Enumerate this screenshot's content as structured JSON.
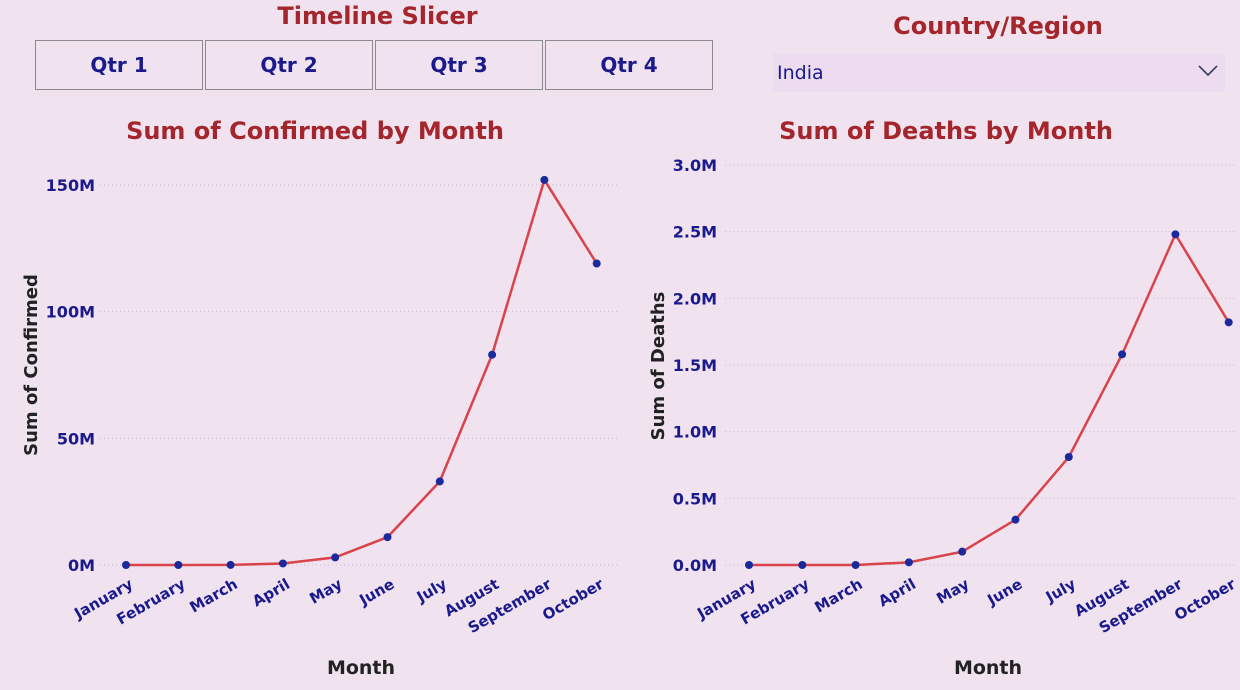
{
  "slicer": {
    "title": "Timeline Slicer",
    "buttons": [
      "Qtr 1",
      "Qtr 2",
      "Qtr 3",
      "Qtr 4"
    ]
  },
  "filter": {
    "title": "Country/Region",
    "selected": "India",
    "icon": "chevron-down-icon"
  },
  "colors": {
    "line": "#d9434a",
    "marker": "#1a2a9c",
    "axis_text": "#1a1a8c",
    "title": "#a4262c",
    "background": "#f0e2ef"
  },
  "chart_data": [
    {
      "type": "line",
      "title": "Sum of Confirmed by Month",
      "xlabel": "Month",
      "ylabel": "Sum of Confirmed",
      "categories": [
        "January",
        "February",
        "March",
        "April",
        "May",
        "June",
        "July",
        "August",
        "September",
        "October"
      ],
      "series": [
        {
          "values": [
            0,
            0,
            0.03,
            0.6,
            3,
            11,
            33,
            83,
            152,
            119
          ]
        }
      ],
      "unit_suffix": "M",
      "ylim": [
        0,
        155
      ],
      "yticks": [
        0,
        50,
        100,
        150
      ],
      "ytick_labels": [
        "0M",
        "50M",
        "100M",
        "150M"
      ],
      "grid": true
    },
    {
      "type": "line",
      "title": "Sum of Deaths by Month",
      "xlabel": "Month",
      "ylabel": "Sum of Deaths",
      "categories": [
        "January",
        "February",
        "March",
        "April",
        "May",
        "June",
        "July",
        "August",
        "September",
        "October"
      ],
      "series": [
        {
          "values": [
            0,
            0,
            0.0,
            0.02,
            0.1,
            0.34,
            0.81,
            1.58,
            2.48,
            1.82
          ]
        }
      ],
      "unit_suffix": "M",
      "ylim": [
        0,
        3.0
      ],
      "yticks": [
        0,
        0.5,
        1.0,
        1.5,
        2.0,
        2.5,
        3.0
      ],
      "ytick_labels": [
        "0.0M",
        "0.5M",
        "1.0M",
        "1.5M",
        "2.0M",
        "2.5M",
        "3.0M"
      ],
      "grid": true
    }
  ]
}
